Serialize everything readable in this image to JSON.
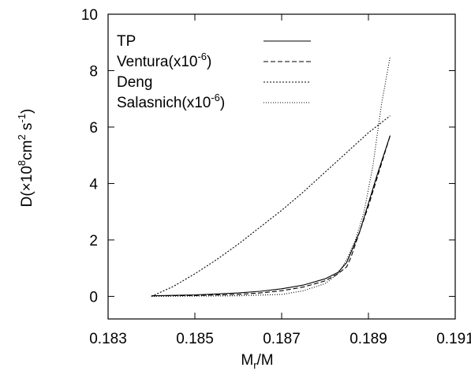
{
  "chart_data": {
    "type": "line",
    "xlabel_main": "M",
    "xlabel_sub": "r",
    "xlabel_tail": "/M",
    "ylabel_pre": "D(",
    "ylabel_times": "×",
    "ylabel_mid1": "10",
    "ylabel_exp1": "8",
    "ylabel_mid2": "cm",
    "ylabel_exp2": "2",
    "ylabel_mid3": " s",
    "ylabel_exp3": "-1",
    "ylabel_post": ")",
    "xlim": [
      0.183,
      0.191
    ],
    "ylim": [
      -0.8,
      10
    ],
    "x_ticks": [
      0.183,
      0.185,
      0.187,
      0.189,
      0.191
    ],
    "x_tick_labels": [
      "0.183",
      "0.185",
      "0.187",
      "0.189",
      "0.191"
    ],
    "y_ticks": [
      0,
      2,
      4,
      6,
      8,
      10
    ],
    "y_tick_labels": [
      "0",
      "2",
      "4",
      "6",
      "8",
      "10"
    ],
    "grid": false,
    "legend_position": "top-left",
    "series": [
      {
        "name": "TP",
        "label_main": "TP",
        "label_exp": "",
        "label_tail": "",
        "dash": "solid",
        "x": [
          0.184,
          0.185,
          0.186,
          0.1865,
          0.187,
          0.1875,
          0.188,
          0.1883,
          0.1885,
          0.1888,
          0.189,
          0.1892,
          0.1895
        ],
        "y": [
          0.02,
          0.05,
          0.12,
          0.18,
          0.27,
          0.4,
          0.62,
          0.85,
          1.2,
          2.3,
          3.3,
          4.3,
          5.7
        ]
      },
      {
        "name": "Ventura(x10-6)",
        "label_main": "Ventura(x10",
        "label_exp": "-6",
        "label_tail": ")",
        "dash": "dashed",
        "x": [
          0.184,
          0.185,
          0.186,
          0.1865,
          0.187,
          0.1875,
          0.188,
          0.1883,
          0.1885,
          0.1886,
          0.1888,
          0.189,
          0.1892,
          0.1895
        ],
        "y": [
          0.02,
          0.03,
          0.07,
          0.12,
          0.2,
          0.33,
          0.55,
          0.8,
          1.05,
          1.4,
          2.3,
          3.2,
          4.2,
          5.7
        ]
      },
      {
        "name": "Deng",
        "label_main": "Deng",
        "label_exp": "",
        "label_tail": "",
        "dash": "dense-dotted",
        "x": [
          0.184,
          0.1845,
          0.185,
          0.1855,
          0.186,
          0.1865,
          0.187,
          0.1875,
          0.188,
          0.1885,
          0.189,
          0.1895
        ],
        "y": [
          0.0,
          0.35,
          0.8,
          1.3,
          1.85,
          2.45,
          3.05,
          3.7,
          4.4,
          5.1,
          5.8,
          6.4
        ]
      },
      {
        "name": "Salasnich(x10-6)",
        "label_main": "Salasnich(x10",
        "label_exp": "-6",
        "label_tail": ")",
        "dash": "dotted",
        "x": [
          0.184,
          0.186,
          0.187,
          0.1875,
          0.188,
          0.1883,
          0.1885,
          0.1887,
          0.1889,
          0.1891,
          0.1893,
          0.1895
        ],
        "y": [
          0.0,
          0.02,
          0.07,
          0.2,
          0.45,
          0.8,
          1.3,
          2.0,
          3.0,
          4.6,
          6.8,
          8.5
        ]
      }
    ]
  }
}
